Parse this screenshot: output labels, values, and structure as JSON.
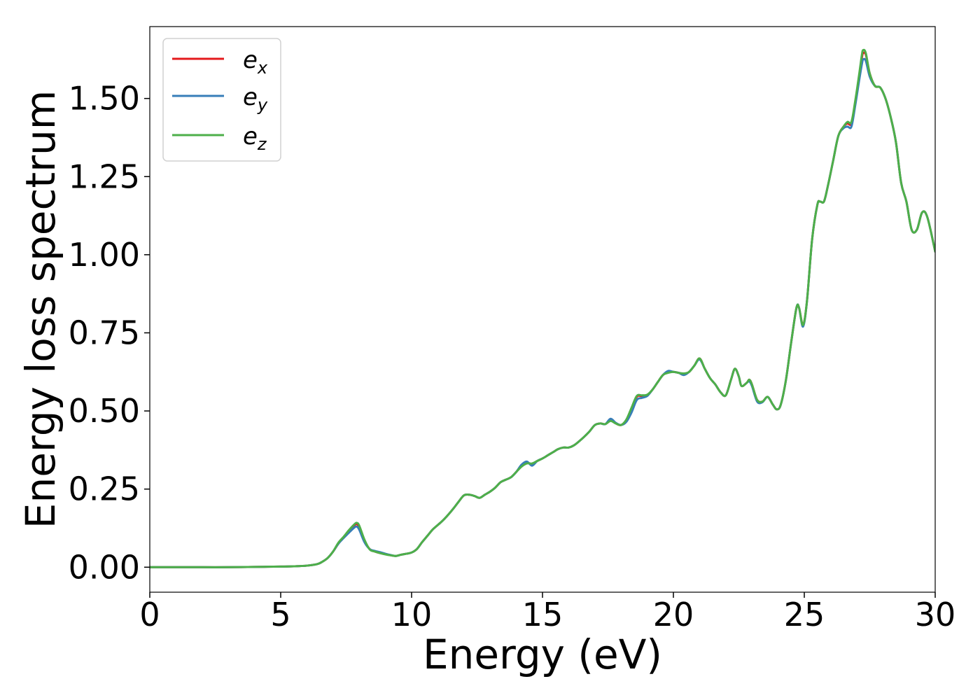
{
  "chart_data": {
    "type": "line",
    "xlabel": "Energy (eV)",
    "ylabel": "Energy loss spectrum",
    "xlim": [
      0,
      30
    ],
    "ylim": [
      -0.08,
      1.73
    ],
    "xticks": [
      0,
      5,
      10,
      15,
      20,
      25,
      30
    ],
    "xtick_labels": [
      "0",
      "5",
      "10",
      "15",
      "20",
      "25",
      "30"
    ],
    "yticks": [
      0.0,
      0.25,
      0.5,
      0.75,
      1.0,
      1.25,
      1.5
    ],
    "ytick_labels": [
      "0.00",
      "0.25",
      "0.50",
      "0.75",
      "1.00",
      "1.25",
      "1.50"
    ],
    "grid": false,
    "legend_position": "top-left",
    "x": [
      0,
      1,
      2,
      3,
      4,
      5,
      5.5,
      6,
      6.4,
      6.6,
      6.8,
      7.0,
      7.2,
      7.4,
      7.6,
      7.8,
      7.9,
      8.0,
      8.2,
      8.4,
      8.6,
      8.8,
      9.0,
      9.2,
      9.4,
      9.6,
      9.8,
      10.0,
      10.2,
      10.4,
      10.6,
      10.8,
      11.0,
      11.2,
      11.4,
      11.6,
      11.8,
      12.0,
      12.2,
      12.4,
      12.6,
      12.8,
      13.0,
      13.2,
      13.4,
      13.6,
      13.8,
      14.0,
      14.2,
      14.4,
      14.6,
      14.8,
      15.0,
      15.2,
      15.4,
      15.6,
      15.8,
      16.0,
      16.2,
      16.4,
      16.6,
      16.8,
      17.0,
      17.2,
      17.4,
      17.6,
      17.8,
      18.0,
      18.2,
      18.4,
      18.6,
      18.8,
      19.0,
      19.2,
      19.4,
      19.6,
      19.8,
      20.0,
      20.2,
      20.4,
      20.6,
      20.8,
      21.0,
      21.2,
      21.4,
      21.6,
      21.8,
      22.0,
      22.2,
      22.35,
      22.5,
      22.6,
      22.8,
      22.9,
      23.0,
      23.2,
      23.4,
      23.6,
      23.8,
      23.95,
      24.1,
      24.3,
      24.5,
      24.7,
      24.8,
      24.95,
      25.1,
      25.3,
      25.5,
      25.6,
      25.75,
      25.9,
      26.1,
      26.3,
      26.5,
      26.65,
      26.8,
      26.95,
      27.1,
      27.2,
      27.25,
      27.35,
      27.5,
      27.7,
      27.9,
      28.1,
      28.3,
      28.5,
      28.7,
      28.9,
      29.1,
      29.3,
      29.5,
      29.7,
      30.0
    ],
    "series": [
      {
        "name": "e_x",
        "color": "#e41a1c",
        "values": [
          0.0,
          0.0,
          0.0,
          0.0,
          0.001,
          0.002,
          0.003,
          0.005,
          0.01,
          0.018,
          0.03,
          0.05,
          0.075,
          0.095,
          0.115,
          0.133,
          0.138,
          0.128,
          0.085,
          0.058,
          0.05,
          0.045,
          0.042,
          0.038,
          0.036,
          0.04,
          0.043,
          0.047,
          0.058,
          0.08,
          0.1,
          0.12,
          0.135,
          0.15,
          0.168,
          0.188,
          0.21,
          0.23,
          0.232,
          0.228,
          0.222,
          0.232,
          0.242,
          0.255,
          0.272,
          0.28,
          0.288,
          0.305,
          0.325,
          0.335,
          0.33,
          0.34,
          0.348,
          0.358,
          0.368,
          0.378,
          0.383,
          0.383,
          0.39,
          0.403,
          0.418,
          0.435,
          0.455,
          0.46,
          0.458,
          0.47,
          0.46,
          0.455,
          0.47,
          0.505,
          0.545,
          0.548,
          0.55,
          0.568,
          0.592,
          0.615,
          0.625,
          0.625,
          0.622,
          0.618,
          0.625,
          0.645,
          0.668,
          0.635,
          0.605,
          0.585,
          0.56,
          0.55,
          0.6,
          0.635,
          0.61,
          0.58,
          0.59,
          0.6,
          0.585,
          0.535,
          0.53,
          0.545,
          0.52,
          0.505,
          0.52,
          0.6,
          0.72,
          0.83,
          0.83,
          0.775,
          0.85,
          1.05,
          1.16,
          1.17,
          1.17,
          1.22,
          1.3,
          1.38,
          1.41,
          1.42,
          1.42,
          1.49,
          1.57,
          1.63,
          1.645,
          1.64,
          1.58,
          1.54,
          1.535,
          1.5,
          1.44,
          1.36,
          1.23,
          1.17,
          1.08,
          1.08,
          1.135,
          1.12,
          1.01
        ]
      },
      {
        "name": "e_y",
        "color": "#377eb8",
        "values": [
          0.0,
          0.0,
          0.0,
          0.0,
          0.001,
          0.002,
          0.003,
          0.005,
          0.01,
          0.018,
          0.03,
          0.05,
          0.075,
          0.093,
          0.11,
          0.126,
          0.13,
          0.12,
          0.08,
          0.058,
          0.052,
          0.048,
          0.043,
          0.039,
          0.036,
          0.04,
          0.043,
          0.047,
          0.058,
          0.08,
          0.1,
          0.12,
          0.135,
          0.15,
          0.168,
          0.188,
          0.21,
          0.23,
          0.232,
          0.228,
          0.222,
          0.232,
          0.242,
          0.255,
          0.272,
          0.28,
          0.288,
          0.305,
          0.328,
          0.338,
          0.325,
          0.34,
          0.348,
          0.358,
          0.368,
          0.378,
          0.383,
          0.383,
          0.39,
          0.403,
          0.418,
          0.435,
          0.455,
          0.46,
          0.458,
          0.475,
          0.462,
          0.455,
          0.465,
          0.495,
          0.535,
          0.542,
          0.548,
          0.568,
          0.592,
          0.615,
          0.628,
          0.625,
          0.622,
          0.615,
          0.625,
          0.645,
          0.665,
          0.635,
          0.605,
          0.585,
          0.56,
          0.55,
          0.6,
          0.635,
          0.61,
          0.58,
          0.59,
          0.595,
          0.58,
          0.53,
          0.528,
          0.545,
          0.52,
          0.505,
          0.52,
          0.6,
          0.72,
          0.83,
          0.83,
          0.77,
          0.85,
          1.05,
          1.16,
          1.17,
          1.17,
          1.22,
          1.3,
          1.38,
          1.405,
          1.41,
          1.41,
          1.48,
          1.56,
          1.61,
          1.625,
          1.62,
          1.57,
          1.54,
          1.535,
          1.5,
          1.44,
          1.36,
          1.23,
          1.17,
          1.08,
          1.08,
          1.135,
          1.12,
          1.01
        ]
      },
      {
        "name": "e_z",
        "color": "#4daf4a",
        "values": [
          0.0,
          0.0,
          0.0,
          0.0,
          0.001,
          0.002,
          0.003,
          0.005,
          0.01,
          0.018,
          0.03,
          0.05,
          0.078,
          0.097,
          0.118,
          0.136,
          0.142,
          0.133,
          0.088,
          0.057,
          0.05,
          0.045,
          0.041,
          0.038,
          0.036,
          0.04,
          0.043,
          0.047,
          0.058,
          0.08,
          0.1,
          0.12,
          0.135,
          0.15,
          0.168,
          0.188,
          0.21,
          0.23,
          0.232,
          0.228,
          0.222,
          0.232,
          0.242,
          0.255,
          0.272,
          0.28,
          0.288,
          0.305,
          0.322,
          0.332,
          0.332,
          0.34,
          0.348,
          0.358,
          0.368,
          0.378,
          0.383,
          0.383,
          0.39,
          0.403,
          0.418,
          0.435,
          0.455,
          0.46,
          0.458,
          0.468,
          0.46,
          0.455,
          0.472,
          0.51,
          0.548,
          0.55,
          0.552,
          0.568,
          0.592,
          0.615,
          0.622,
          0.625,
          0.622,
          0.62,
          0.625,
          0.645,
          0.668,
          0.635,
          0.605,
          0.585,
          0.56,
          0.55,
          0.6,
          0.635,
          0.61,
          0.58,
          0.59,
          0.6,
          0.585,
          0.535,
          0.53,
          0.545,
          0.52,
          0.505,
          0.52,
          0.6,
          0.72,
          0.83,
          0.83,
          0.775,
          0.85,
          1.05,
          1.16,
          1.17,
          1.17,
          1.22,
          1.3,
          1.38,
          1.41,
          1.425,
          1.425,
          1.495,
          1.58,
          1.64,
          1.655,
          1.645,
          1.58,
          1.54,
          1.535,
          1.5,
          1.44,
          1.36,
          1.23,
          1.17,
          1.08,
          1.08,
          1.135,
          1.12,
          1.01
        ]
      }
    ]
  },
  "legend": {
    "items": [
      {
        "base": "e",
        "sub": "x"
      },
      {
        "base": "e",
        "sub": "y"
      },
      {
        "base": "e",
        "sub": "z"
      }
    ]
  }
}
